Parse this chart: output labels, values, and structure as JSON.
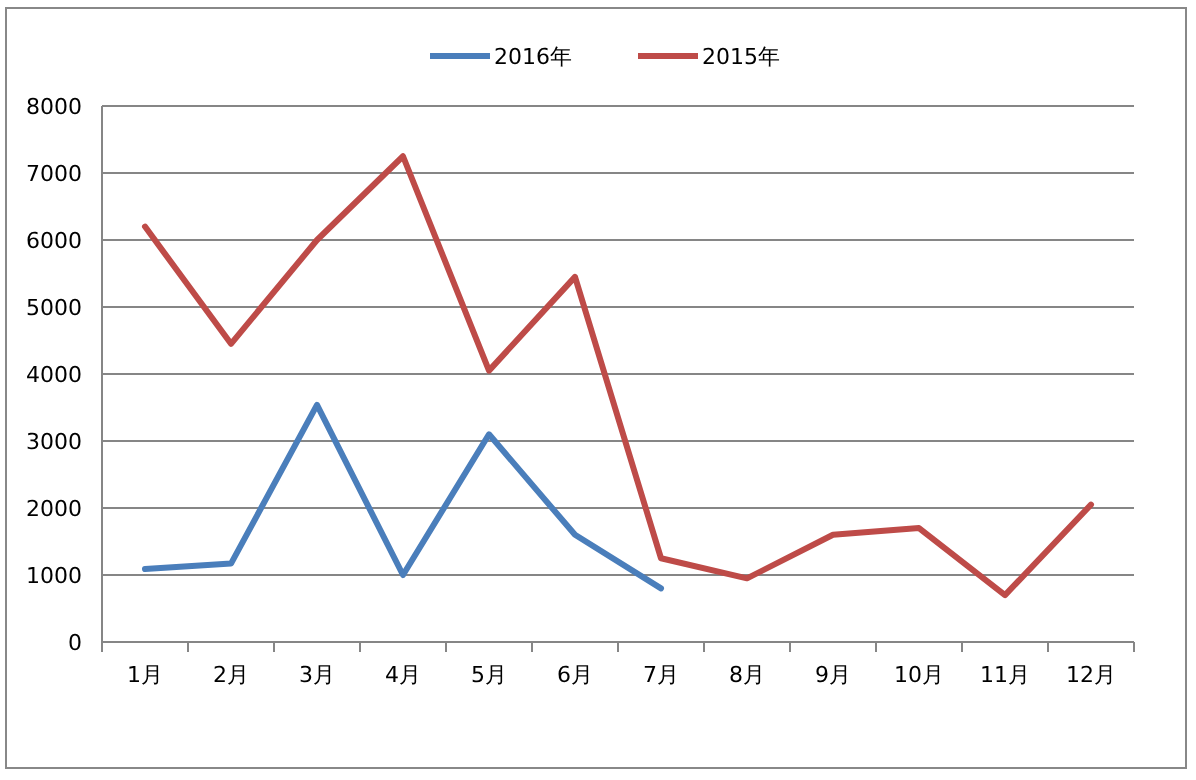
{
  "chart_data": {
    "type": "line",
    "categories": [
      "1月",
      "2月",
      "3月",
      "4月",
      "5月",
      "6月",
      "7月",
      "8月",
      "9月",
      "10月",
      "11月",
      "12月"
    ],
    "series": [
      {
        "name": "2016年",
        "color": "#4a7ebb",
        "values": [
          1090,
          1170,
          3540,
          1000,
          3100,
          1600,
          800,
          null,
          null,
          null,
          null,
          null
        ]
      },
      {
        "name": "2015年",
        "color": "#be4b48",
        "values": [
          6200,
          4450,
          6000,
          7250,
          4050,
          5450,
          1250,
          950,
          1600,
          1700,
          700,
          2050
        ]
      }
    ],
    "ylim": [
      0,
      8000
    ],
    "yticks": [
      0,
      1000,
      2000,
      3000,
      4000,
      5000,
      6000,
      7000,
      8000
    ],
    "grid": "y",
    "legend": "top",
    "marker": "none",
    "line_style": "solid"
  }
}
